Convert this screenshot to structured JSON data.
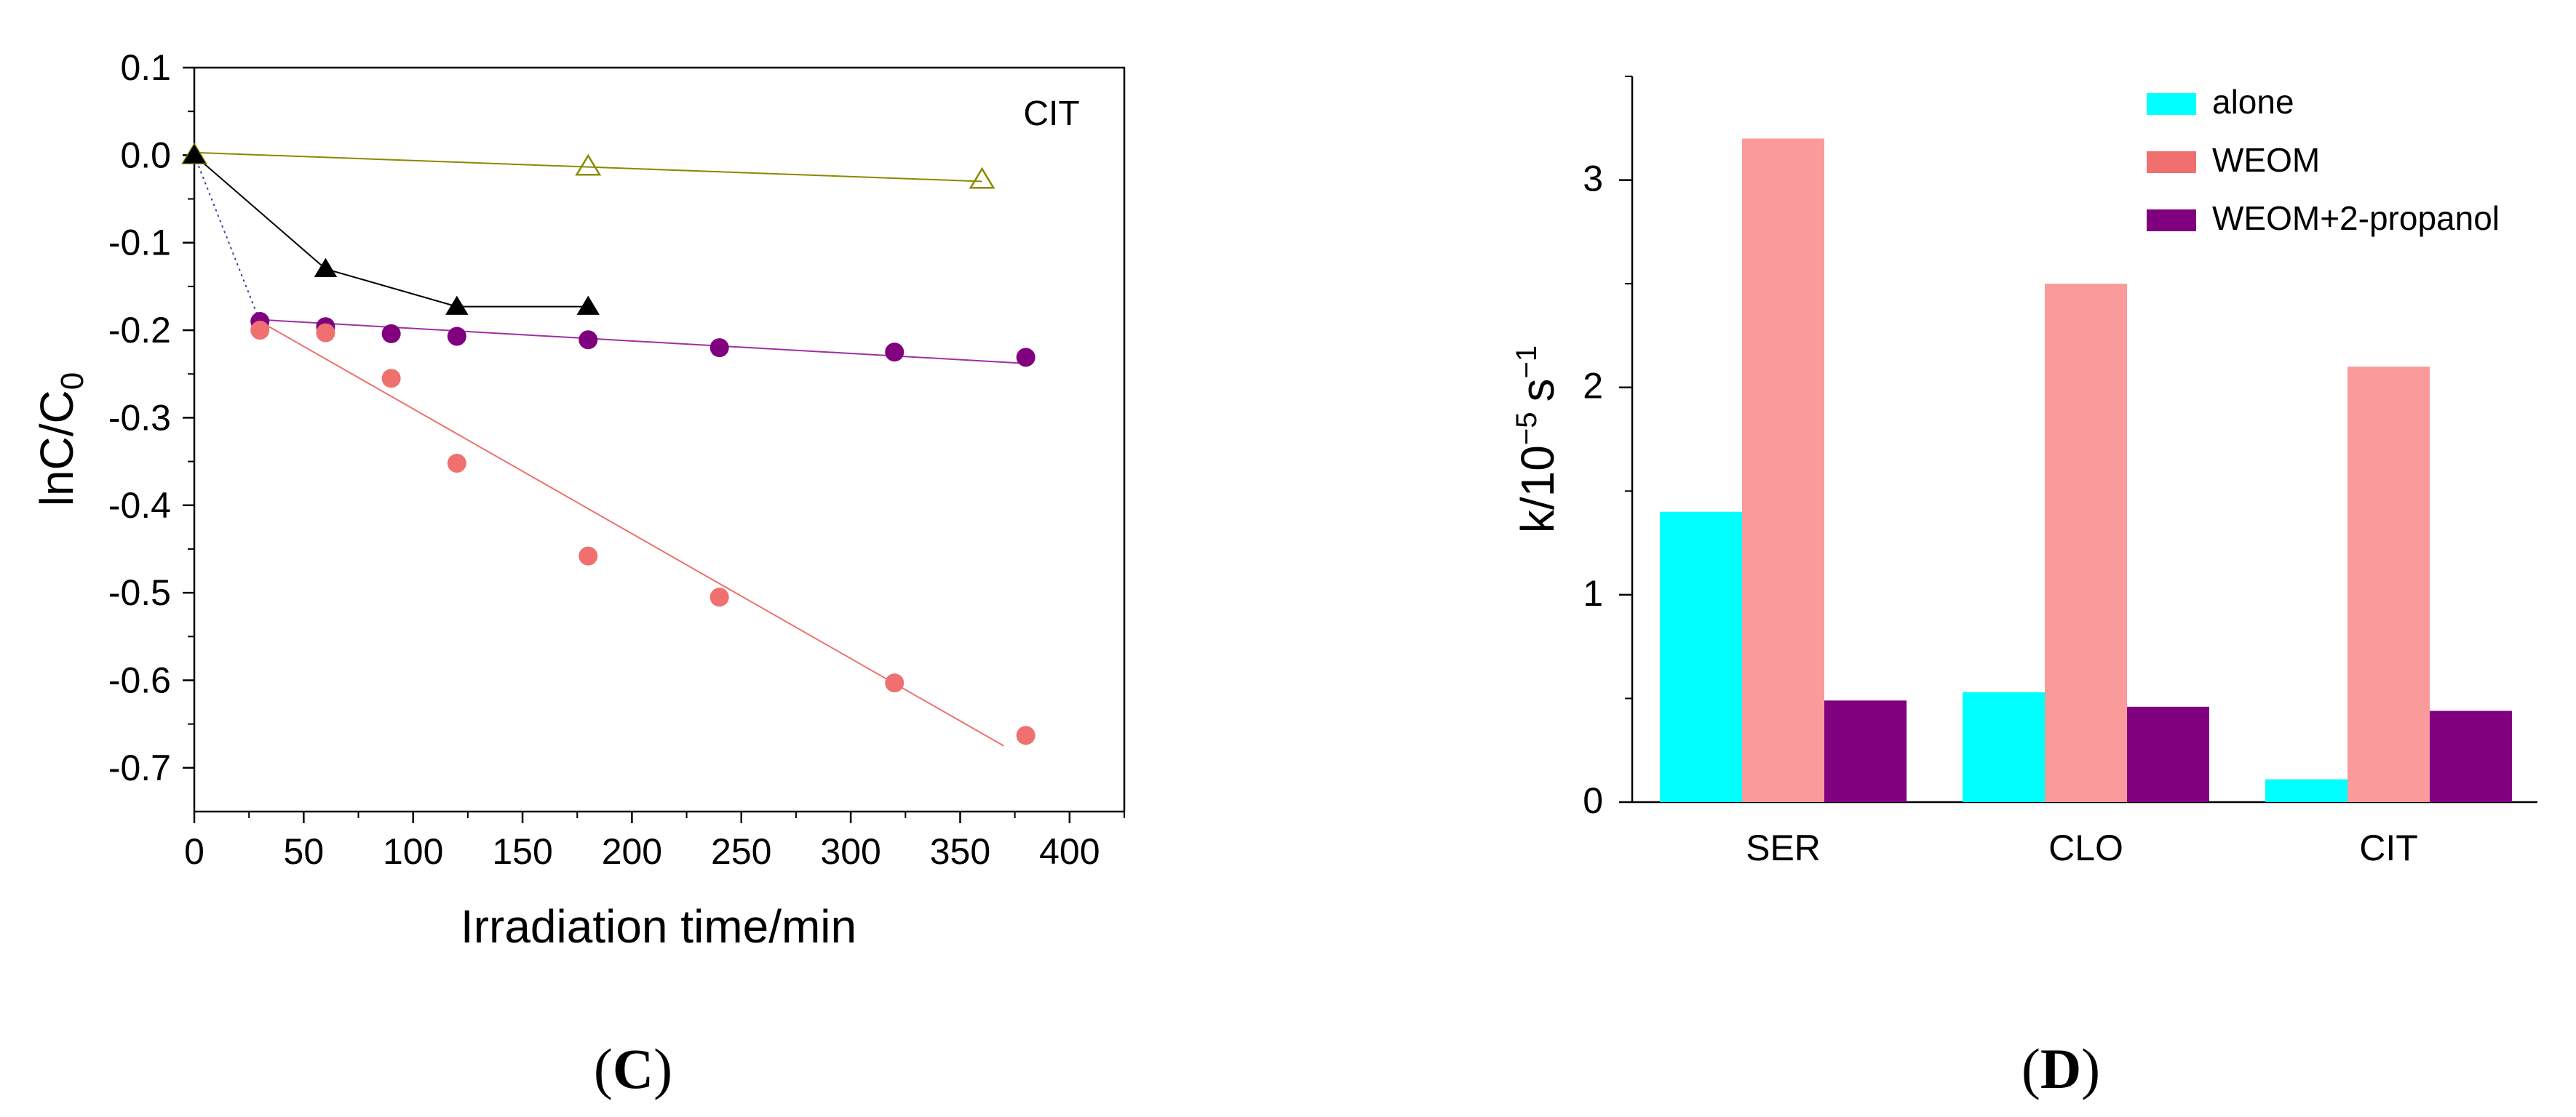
{
  "chart_data": [
    {
      "panel": "C",
      "type": "scatter",
      "xlabel": "Irradiation time/min",
      "ylabel": "lnC/C",
      "ylabel_sub": "0",
      "annotation": "CIT",
      "xlim": [
        0,
        425
      ],
      "ylim": [
        -0.75,
        0.1
      ],
      "xticks": [
        0,
        50,
        100,
        150,
        200,
        250,
        300,
        350,
        400
      ],
      "yticks": [
        0.1,
        0.0,
        -0.1,
        -0.2,
        -0.3,
        -0.4,
        -0.5,
        -0.6,
        -0.7
      ],
      "ytick_labels": [
        "0.1",
        "0.0",
        "-0.1",
        "-0.2",
        "-0.3",
        "-0.4",
        "-0.5",
        "-0.6",
        "-0.7"
      ],
      "xtick_labels": [
        "0",
        "50",
        "100",
        "150",
        "200",
        "250",
        "300",
        "350",
        "400"
      ],
      "series": [
        {
          "name": "open-triangle",
          "marker": "triangle-open",
          "color": "#8a8a00",
          "x": [
            0,
            180,
            360
          ],
          "y": [
            0.0,
            -0.013,
            -0.028
          ],
          "fit": {
            "x": [
              0,
              360
            ],
            "y": [
              0.003,
              -0.03
            ],
            "color": "#8a8a00"
          }
        },
        {
          "name": "black-triangle",
          "marker": "triangle",
          "color": "#000000",
          "x": [
            0,
            60,
            120,
            180
          ],
          "y": [
            0.0,
            -0.13,
            -0.173,
            -0.173
          ],
          "connect": true,
          "color_line": "#000000"
        },
        {
          "name": "purple-circle",
          "marker": "circle",
          "color": "#800080",
          "x": [
            30,
            60,
            90,
            120,
            180,
            240,
            320,
            380
          ],
          "y": [
            -0.19,
            -0.196,
            -0.204,
            -0.207,
            -0.211,
            -0.22,
            -0.225,
            -0.231
          ],
          "fit": {
            "x": [
              30,
              380
            ],
            "y": [
              -0.188,
              -0.238
            ],
            "color": "#a030a0"
          }
        },
        {
          "name": "salmon-circle",
          "marker": "circle",
          "color": "#f07070",
          "x": [
            30,
            60,
            90,
            120,
            180,
            240,
            320,
            380
          ],
          "y": [
            -0.2,
            -0.203,
            -0.255,
            -0.352,
            -0.458,
            -0.505,
            -0.603,
            -0.663
          ],
          "fit": {
            "x": [
              30,
              370
            ],
            "y": [
              -0.19,
              -0.675
            ],
            "color": "#f07070"
          }
        }
      ],
      "dotted_link": {
        "x": [
          0,
          30
        ],
        "y": [
          0.0,
          -0.19
        ],
        "color": "#4040a0"
      }
    },
    {
      "panel": "D",
      "type": "bar",
      "ylabel": "k/10",
      "ylabel_exp1": "−5",
      "ylabel_unit": "s",
      "ylabel_exp2": "−1",
      "categories": [
        "SER",
        "CLO",
        "CIT"
      ],
      "ylim": [
        0,
        3.5
      ],
      "yticks": [
        0,
        1,
        2,
        3
      ],
      "ytick_labels": [
        "0",
        "1",
        "2",
        "3"
      ],
      "legend_position": "top-right",
      "series": [
        {
          "name": "alone",
          "color": "#00ffff",
          "values": [
            1.4,
            0.53,
            0.11
          ]
        },
        {
          "name": "WEOM",
          "color": "#fa9a9a",
          "legend_color": "#f07070",
          "values": [
            3.2,
            2.5,
            2.1
          ]
        },
        {
          "name": "WEOM+2-propanol",
          "color": "#800080",
          "values": [
            0.49,
            0.46,
            0.44
          ]
        }
      ]
    }
  ],
  "captions": {
    "left": {
      "open": "(",
      "letter": "C",
      "close": ")"
    },
    "right": {
      "open": "(",
      "letter": "D",
      "close": ")"
    }
  }
}
